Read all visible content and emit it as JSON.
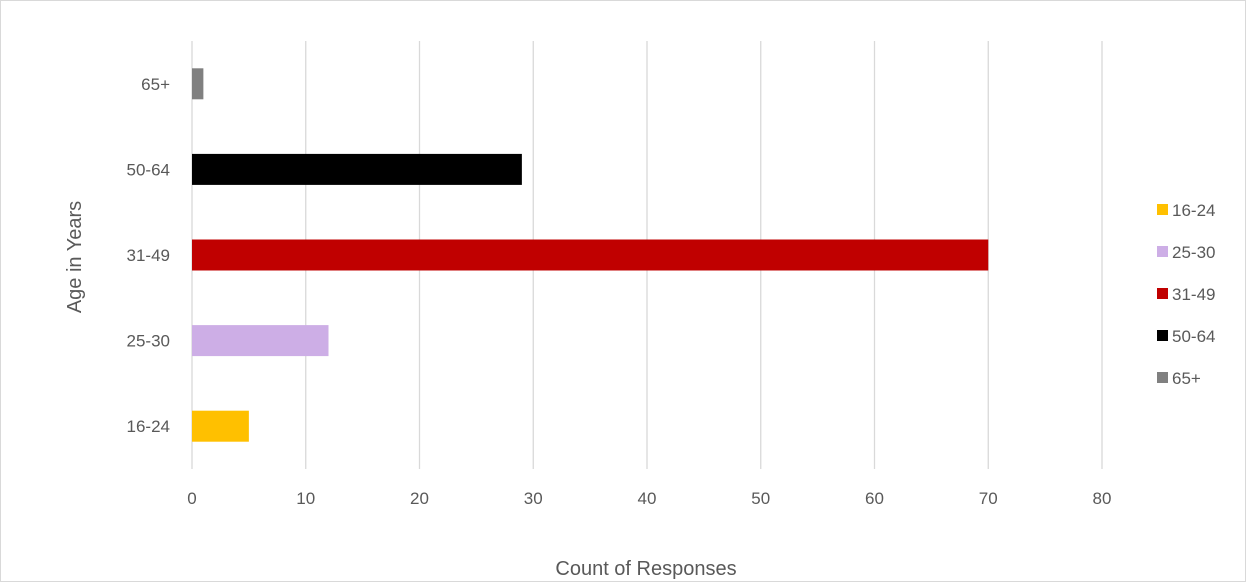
{
  "chart_data": {
    "type": "bar",
    "orientation": "horizontal",
    "title": "",
    "xlabel": "Count of Responses",
    "ylabel": "Age in Years",
    "xlim": [
      0,
      80
    ],
    "xticks": [
      0,
      10,
      20,
      30,
      40,
      50,
      60,
      70,
      80
    ],
    "grid": "vertical",
    "legend": "right",
    "categories": [
      "16-24",
      "25-30",
      "31-49",
      "50-64",
      "65+"
    ],
    "values": [
      5,
      12,
      70,
      29,
      1
    ],
    "colors": [
      "#ffc000",
      "#cdaee6",
      "#c00000",
      "#000000",
      "#808080"
    ]
  }
}
